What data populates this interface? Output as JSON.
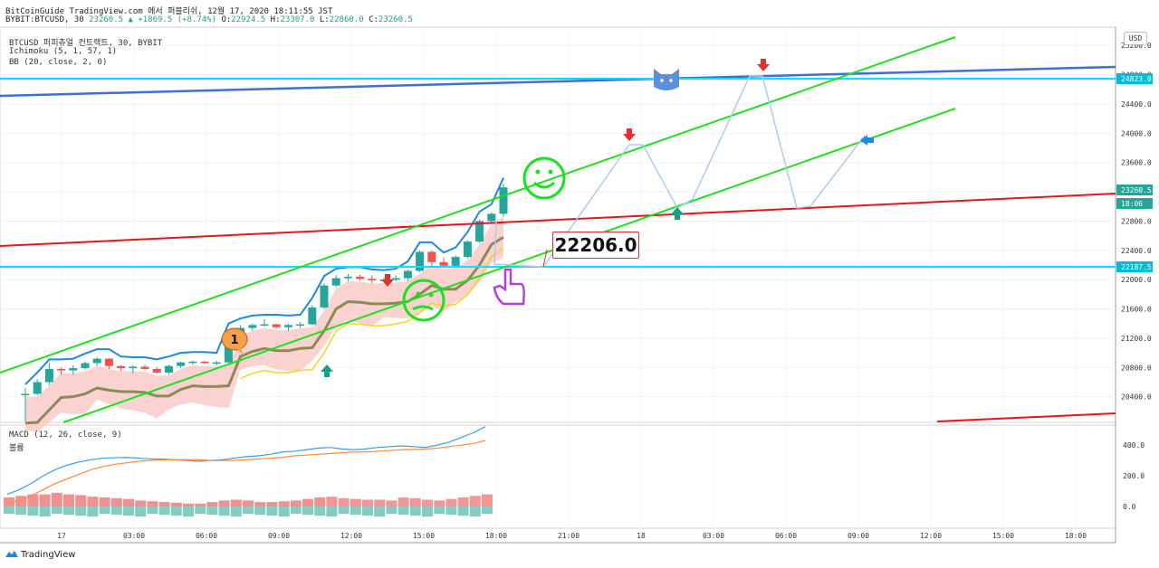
{
  "header": {
    "line1": "BitCoinGuide TradingView.com 에서 퍼블리쉬, 12월 17, 2020 18:11:55 JST",
    "symbol": "BYBIT:BTCUSD, 30",
    "last": "23260.5",
    "change": "+1869.5 (+8.74%)",
    "open_label": "O:",
    "open": "22924.5",
    "high_label": "H:",
    "high": "23307.0",
    "low_label": "L:",
    "low": "22860.0",
    "close_label": "C:",
    "close": "23260.5"
  },
  "legend": {
    "title": "BTCUSD 퍼피츄얼 컨트랙트, 30, BYBIT",
    "ichimoku": "Ichimoku (5, 1, 57, 1)",
    "bb": "BB (20, close, 2, 0)",
    "macd": "MACD (12, 26, close, 9)",
    "volume": "볼륨"
  },
  "axis": {
    "unit": "USD"
  },
  "annotations": {
    "callout": "22206.0",
    "bubble_number": "1"
  },
  "footer": {
    "brand": "TradingView"
  },
  "colors": {
    "up": "#26a69a",
    "down": "#ef5350",
    "cyan": "#00e5ff",
    "blue_line": "#3d6fd6",
    "red_line": "#e8141b",
    "green_channel": "#1ee01e",
    "cloud": "#f8c4c0",
    "macd": "#3d9be9",
    "signal": "#ff8a3c",
    "bb_lower": "#f5d427",
    "kijun": "#8d8a5a"
  },
  "chart_data": {
    "type": "candlestick",
    "price_axis": {
      "ticks": [
        20400,
        20800,
        21200,
        21600,
        22000,
        22400,
        22800,
        23200,
        23600,
        24000,
        24400,
        24800,
        25200
      ],
      "range": [
        20050,
        25450
      ]
    },
    "time_axis": {
      "labels": [
        "17",
        "03:00",
        "06:00",
        "09:00",
        "12:00",
        "15:00",
        "18:00",
        "21:00",
        "18",
        "03:00",
        "06:00",
        "09:00",
        "12:00",
        "15:00",
        "18:00"
      ]
    },
    "price_labels": [
      {
        "value": "24823.0",
        "color": "#00bcd4"
      },
      {
        "value": "23260.5",
        "color": "#26a69a"
      },
      {
        "value": "18:06",
        "color": "#26a69a"
      },
      {
        "value": "22187.5",
        "color": "#00bcd4"
      }
    ],
    "candles": [
      [
        20440,
        20520,
        20060,
        20440
      ],
      [
        20440,
        20640,
        20420,
        20600
      ],
      [
        20600,
        20860,
        20560,
        20780
      ],
      [
        20780,
        20800,
        20700,
        20760
      ],
      [
        20760,
        20830,
        20700,
        20790
      ],
      [
        20790,
        20880,
        20770,
        20860
      ],
      [
        20860,
        20940,
        20820,
        20920
      ],
      [
        20920,
        20930,
        20780,
        20820
      ],
      [
        20820,
        20830,
        20750,
        20790
      ],
      [
        20790,
        20830,
        20720,
        20810
      ],
      [
        20810,
        20840,
        20760,
        20780
      ],
      [
        20780,
        20800,
        20710,
        20730
      ],
      [
        20730,
        20840,
        20700,
        20820
      ],
      [
        20820,
        20880,
        20790,
        20870
      ],
      [
        20870,
        20890,
        20840,
        20880
      ],
      [
        20880,
        20890,
        20850,
        20860
      ],
      [
        20860,
        20890,
        20830,
        20870
      ],
      [
        20870,
        21300,
        20860,
        21270
      ],
      [
        21270,
        21380,
        21240,
        21340
      ],
      [
        21340,
        21400,
        21300,
        21380
      ],
      [
        21380,
        21460,
        21360,
        21390
      ],
      [
        21390,
        21400,
        21330,
        21350
      ],
      [
        21350,
        21400,
        21300,
        21380
      ],
      [
        21380,
        21420,
        21340,
        21390
      ],
      [
        21390,
        21650,
        21380,
        21620
      ],
      [
        21620,
        21950,
        21600,
        21920
      ],
      [
        21920,
        22060,
        21900,
        22020
      ],
      [
        22020,
        22080,
        21980,
        22040
      ],
      [
        22040,
        22070,
        21980,
        22010
      ],
      [
        22010,
        22060,
        21950,
        21990
      ],
      [
        21990,
        22030,
        21960,
        22000
      ],
      [
        22000,
        22060,
        21980,
        22020
      ],
      [
        22020,
        22140,
        21980,
        22120
      ],
      [
        22120,
        22400,
        22100,
        22380
      ],
      [
        22380,
        22400,
        22180,
        22240
      ],
      [
        22240,
        22300,
        22170,
        22190
      ],
      [
        22190,
        22330,
        22160,
        22310
      ],
      [
        22310,
        22540,
        22290,
        22520
      ],
      [
        22520,
        22820,
        22500,
        22800
      ],
      [
        22800,
        22920,
        22760,
        22900
      ],
      [
        22900,
        23307,
        22860,
        23260
      ]
    ],
    "macd_axis": {
      "ticks": [
        0,
        200,
        400
      ],
      "range": [
        -140,
        530
      ]
    },
    "macd": [
      80,
      110,
      150,
      200,
      240,
      270,
      290,
      305,
      315,
      318,
      320,
      315,
      310,
      310,
      305,
      300,
      295,
      300,
      305,
      315,
      325,
      330,
      340,
      355,
      360,
      370,
      380,
      385,
      375,
      370,
      375,
      385,
      390,
      395,
      390,
      385,
      400,
      420,
      450,
      480,
      520
    ],
    "signal": [
      20,
      40,
      70,
      110,
      150,
      180,
      210,
      240,
      260,
      275,
      285,
      295,
      300,
      305,
      305,
      305,
      305,
      300,
      300,
      300,
      305,
      310,
      315,
      320,
      330,
      335,
      340,
      345,
      350,
      355,
      355,
      360,
      365,
      370,
      372,
      375,
      380,
      390,
      400,
      410,
      430
    ],
    "volume_hist": [
      60,
      70,
      80,
      80,
      90,
      80,
      75,
      65,
      60,
      55,
      50,
      40,
      35,
      30,
      25,
      20,
      20,
      30,
      40,
      45,
      40,
      30,
      30,
      35,
      40,
      50,
      60,
      65,
      55,
      50,
      45,
      45,
      40,
      60,
      55,
      45,
      40,
      50,
      60,
      70,
      80
    ]
  }
}
